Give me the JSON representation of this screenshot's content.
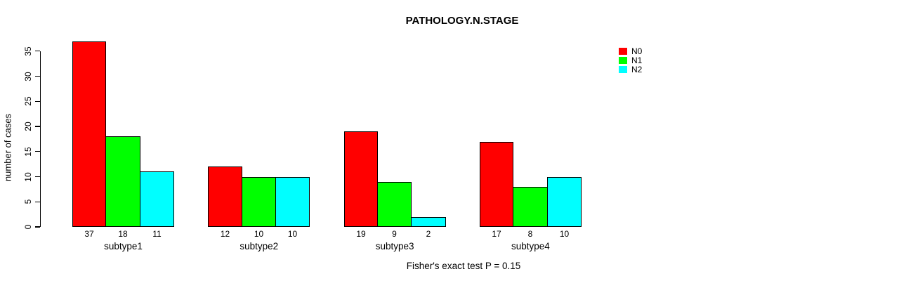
{
  "chart_data": {
    "type": "bar",
    "title": "PATHOLOGY.N.STAGE",
    "categories": [
      "subtype1",
      "subtype2",
      "subtype3",
      "subtype4"
    ],
    "series": [
      {
        "name": "N0",
        "color": "#FF0000",
        "values": [
          37,
          12,
          19,
          17
        ]
      },
      {
        "name": "N1",
        "color": "#00FF00",
        "values": [
          18,
          10,
          9,
          8
        ]
      },
      {
        "name": "N2",
        "color": "#00FFFF",
        "values": [
          11,
          10,
          2,
          10
        ]
      }
    ],
    "xlabel": "",
    "ylabel": "number of cases",
    "yticks": [
      0,
      5,
      10,
      15,
      20,
      25,
      30,
      35
    ],
    "ylim": [
      0,
      37
    ],
    "grid": false,
    "legend_position": "top-right",
    "bar_value_labels": true,
    "annotation": "Fisher's exact test P = 0.15"
  }
}
